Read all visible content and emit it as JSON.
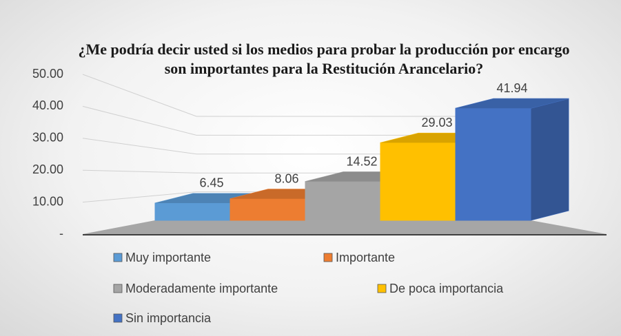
{
  "chart_data": {
    "type": "bar3d",
    "title": "¿Me podría decir usted si los medios para probar la producción por encargo son importantes para la Restitución Arancelario?",
    "series": [
      {
        "name": "Muy importante",
        "color": "#5b9bd5",
        "values": [
          6.45
        ]
      },
      {
        "name": "Importante",
        "color": "#ed7d31",
        "values": [
          8.06
        ]
      },
      {
        "name": "Moderadamente importante",
        "color": "#a5a5a5",
        "values": [
          14.52
        ]
      },
      {
        "name": "De poca importancia",
        "color": "#ffc000",
        "values": [
          29.03
        ]
      },
      {
        "name": "Sin importancia",
        "color": "#4472c4",
        "values": [
          41.94
        ]
      }
    ],
    "ylim": [
      0,
      50
    ],
    "yticks": [
      {
        "value": 0,
        "label": "-"
      },
      {
        "value": 10,
        "label": "10.00"
      },
      {
        "value": 20,
        "label": "20.00"
      },
      {
        "value": 30,
        "label": "30.00"
      },
      {
        "value": 40,
        "label": "40.00"
      },
      {
        "value": 50,
        "label": "50.00"
      }
    ],
    "grid": true,
    "legend": "bottom"
  }
}
